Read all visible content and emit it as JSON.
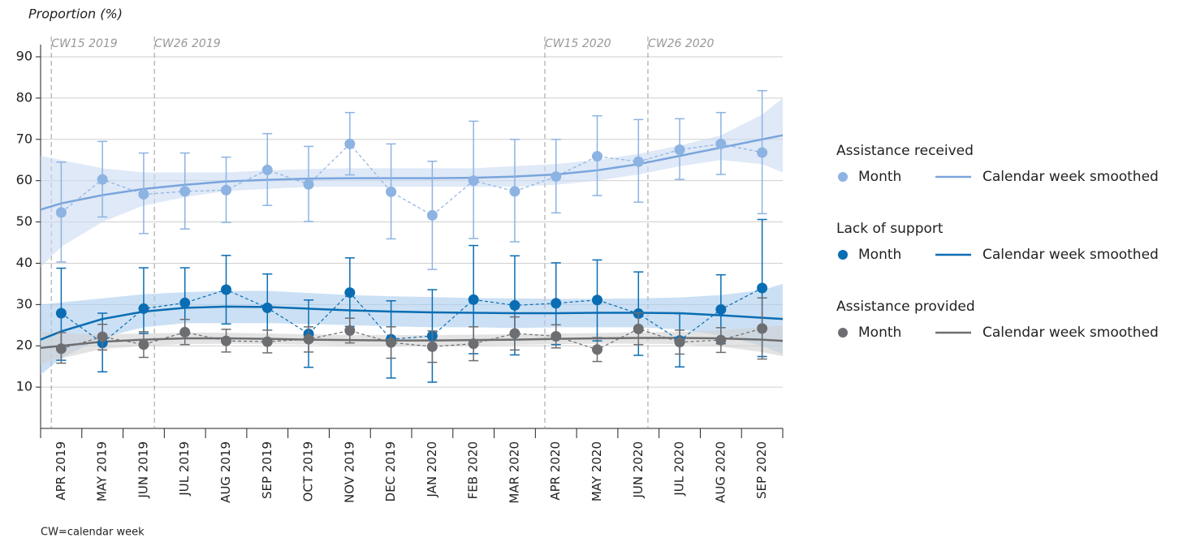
{
  "chart_data": {
    "type": "line",
    "y_label": "Proportion (%)",
    "footnote": "CW=calendar week",
    "categories": [
      "APR 2019",
      "MAY 2019",
      "JUN 2019",
      "JUL 2019",
      "AUG 2019",
      "SEP 2019",
      "OCT 2019",
      "NOV 2019",
      "DEC 2019",
      "JAN 2020",
      "FEB 2020",
      "MAR 2020",
      "APR 2020",
      "MAY 2020",
      "JUN 2020",
      "JUL 2020",
      "AUG 2020",
      "SEP 2020"
    ],
    "ylim": [
      0,
      90
    ],
    "yticks": [
      10,
      20,
      30,
      40,
      50,
      60,
      70,
      80,
      90
    ],
    "grid": true,
    "reference_lines": [
      {
        "label": "CW15 2019",
        "x": -0.24
      },
      {
        "label": "CW26 2019",
        "x": 2.26
      },
      {
        "label": "CW15 2020",
        "x": 11.73
      },
      {
        "label": "CW26 2020",
        "x": 14.23
      }
    ],
    "legend_labels": {
      "points": "Month",
      "smoothed": "Calendar week smoothed"
    },
    "series": [
      {
        "name": "Assistance received",
        "color": "#8db3e2",
        "line_color": "#7aa5dc",
        "band_color": "#c9daf2",
        "values": [
          52.3,
          60.3,
          56.7,
          57.4,
          57.7,
          62.6,
          59.1,
          68.9,
          57.3,
          51.6,
          60.0,
          57.4,
          61.0,
          65.9,
          64.6,
          67.5,
          68.9,
          66.8
        ],
        "lower": [
          40.3,
          51.2,
          47.2,
          48.3,
          49.9,
          54.0,
          50.1,
          61.4,
          45.9,
          38.5,
          46.0,
          45.2,
          52.2,
          56.4,
          54.8,
          60.3,
          61.5,
          52.0
        ],
        "upper": [
          64.5,
          69.5,
          66.7,
          66.7,
          65.7,
          71.4,
          68.3,
          76.5,
          68.9,
          64.7,
          74.4,
          70.0,
          70.0,
          75.7,
          74.8,
          75.0,
          76.5,
          81.8
        ],
        "smoothed": {
          "x": [
            -0.5,
            0,
            1,
            2,
            3,
            4,
            5,
            6,
            7,
            8,
            9,
            10,
            11,
            12,
            13,
            14,
            15,
            16,
            17,
            17.5
          ],
          "values": [
            53,
            54.5,
            56.5,
            58,
            59,
            59.8,
            60.2,
            60.5,
            60.6,
            60.6,
            60.6,
            60.7,
            61,
            61.5,
            62.5,
            64,
            66,
            68,
            70,
            71
          ],
          "lower": [
            39,
            44,
            50,
            54,
            56,
            57.5,
            58,
            58.5,
            58.5,
            58.5,
            58.5,
            58.5,
            58.5,
            59,
            60,
            61.5,
            63.5,
            65,
            64,
            62
          ],
          "upper": [
            66,
            65,
            63,
            62,
            62,
            62,
            62.5,
            62.8,
            63,
            63,
            63,
            63,
            63.5,
            64,
            65,
            66.5,
            68.5,
            71,
            76,
            80
          ]
        }
      },
      {
        "name": "Lack of support",
        "color": "#0a6db3",
        "line_color": "#0a6db3",
        "band_color": "#a9cbec",
        "values": [
          27.9,
          20.7,
          29.0,
          30.4,
          33.6,
          29.2,
          22.9,
          32.9,
          21.6,
          22.4,
          31.2,
          29.8,
          30.3,
          31.1,
          27.8,
          21.3,
          28.8,
          34.0
        ],
        "lower": [
          16.5,
          13.7,
          23.0,
          22.8,
          25.3,
          20.9,
          14.8,
          24.7,
          12.2,
          11.2,
          18.1,
          17.8,
          20.3,
          21.2,
          17.7,
          14.9,
          20.5,
          17.4
        ],
        "upper": [
          38.8,
          27.9,
          38.9,
          38.9,
          41.9,
          37.4,
          31.1,
          41.3,
          30.9,
          33.6,
          44.3,
          41.8,
          40.1,
          40.8,
          37.9,
          27.8,
          37.2,
          50.6
        ],
        "smoothed": {
          "x": [
            -0.5,
            0,
            1,
            2,
            3,
            4,
            5,
            6,
            7,
            8,
            9,
            10,
            11,
            12,
            13,
            14,
            15,
            16,
            17,
            17.5
          ],
          "values": [
            21.5,
            23.5,
            26.5,
            28.3,
            29.2,
            29.5,
            29.4,
            29,
            28.6,
            28.3,
            28.1,
            28,
            27.9,
            27.9,
            28,
            28,
            27.9,
            27.4,
            26.8,
            26.5
          ],
          "lower": [
            13,
            17,
            22,
            24.5,
            25.5,
            25.5,
            25.5,
            25.3,
            25,
            24.7,
            24.5,
            24.5,
            24.3,
            24.5,
            24.5,
            24.5,
            24,
            22.5,
            20,
            18
          ],
          "upper": [
            30,
            30.5,
            31.5,
            32.5,
            33,
            33.3,
            33.3,
            32.8,
            32.3,
            32,
            31.8,
            31.6,
            31.5,
            31.4,
            31.4,
            31.5,
            31.7,
            32.3,
            33.5,
            35
          ]
        }
      },
      {
        "name": "Assistance provided",
        "color": "#6d6e71",
        "line_color": "#6d6e71",
        "band_color": "#d0d0d0",
        "values": [
          19.3,
          22.2,
          20.3,
          23.3,
          21.2,
          21.0,
          21.6,
          23.7,
          20.8,
          19.8,
          20.5,
          23.0,
          22.3,
          19.1,
          24.1,
          20.9,
          21.4,
          24.2
        ],
        "lower": [
          15.8,
          19.0,
          17.2,
          20.3,
          18.5,
          18.3,
          18.5,
          20.7,
          17.0,
          16.0,
          16.4,
          19.0,
          19.5,
          16.2,
          20.3,
          18.0,
          18.4,
          16.8
        ],
        "upper": [
          23.2,
          25.2,
          23.4,
          26.4,
          24.0,
          23.8,
          24.6,
          26.7,
          24.6,
          23.6,
          24.6,
          27.0,
          25.1,
          22.0,
          28.0,
          23.8,
          24.4,
          31.6
        ],
        "smoothed": {
          "x": [
            -0.5,
            0,
            1,
            2,
            3,
            4,
            5,
            6,
            7,
            8,
            9,
            10,
            11,
            12,
            13,
            14,
            15,
            16,
            17,
            17.5
          ],
          "values": [
            19.5,
            20,
            21,
            21.5,
            21.8,
            21.8,
            21.7,
            21.5,
            21.4,
            21.3,
            21.3,
            21.4,
            21.5,
            21.7,
            21.8,
            21.9,
            21.9,
            21.8,
            21.5,
            21.2
          ],
          "lower": [
            15.5,
            17,
            19.2,
            20,
            20.4,
            20.5,
            20.4,
            20.3,
            20.1,
            20,
            20,
            20.1,
            20.2,
            20.4,
            20.5,
            20.5,
            20.4,
            19.8,
            18.5,
            17.5
          ],
          "upper": [
            23.5,
            23,
            22.8,
            23,
            23.2,
            23.2,
            23,
            22.8,
            22.7,
            22.6,
            22.6,
            22.7,
            22.8,
            23,
            23.1,
            23.3,
            23.4,
            23.8,
            24.5,
            25
          ]
        }
      }
    ]
  }
}
